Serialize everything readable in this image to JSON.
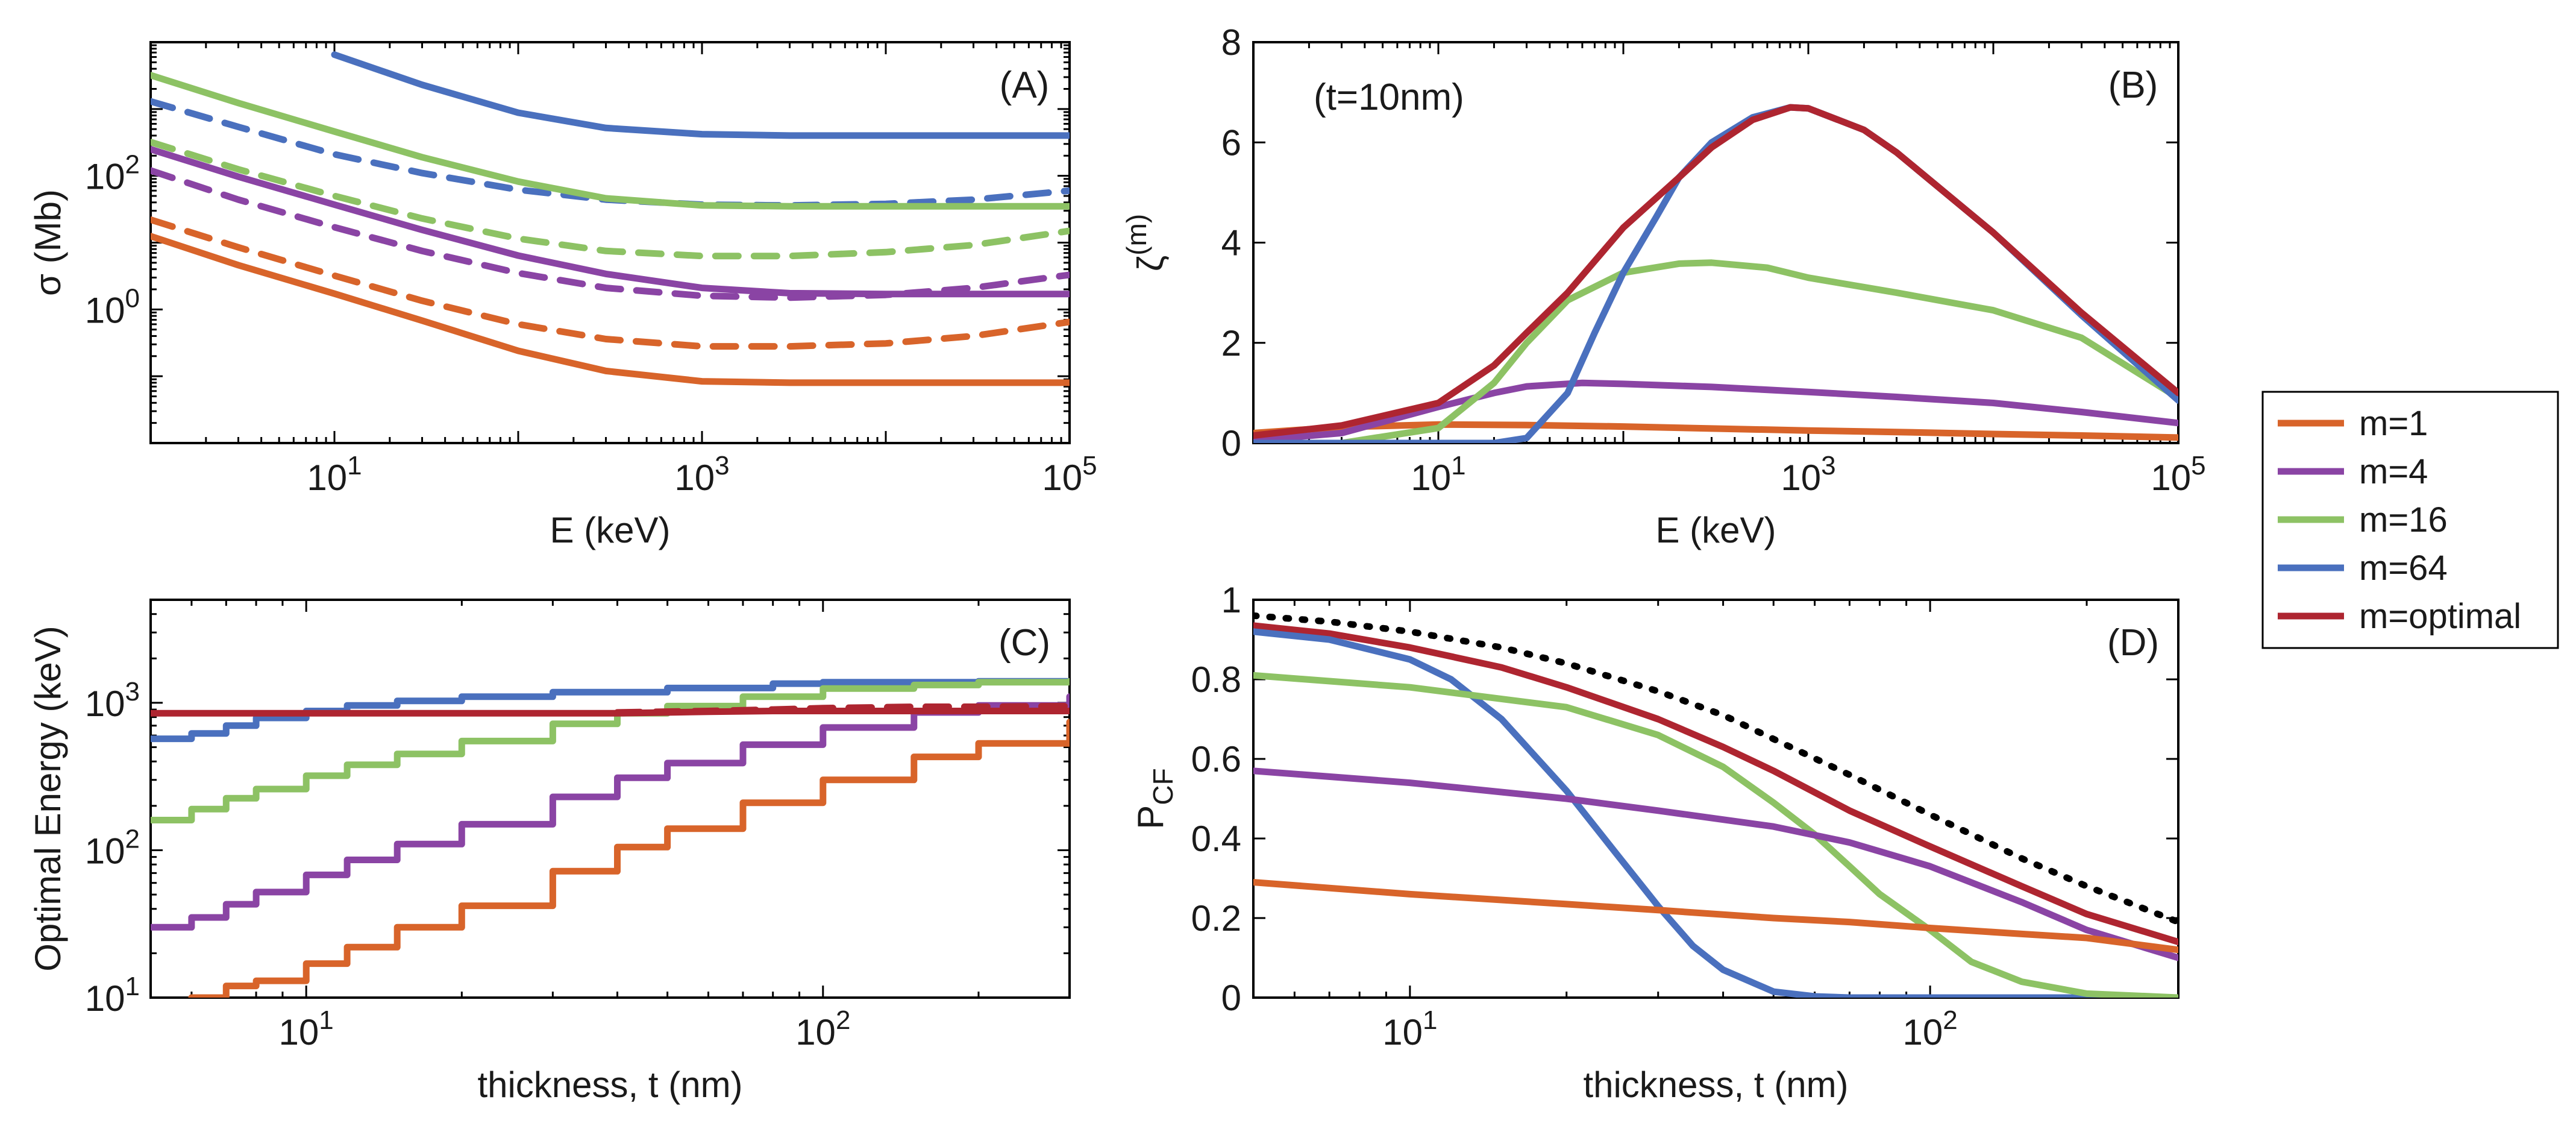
{
  "colors": {
    "m1": "#D8642A",
    "m4": "#8A44A4",
    "m16": "#8DC264",
    "m64": "#4A70BE",
    "mopt": "#AE2530",
    "bound": "#000000"
  },
  "legend": {
    "items": [
      {
        "key": "m1",
        "label": "m=1"
      },
      {
        "key": "m4",
        "label": "m=4"
      },
      {
        "key": "m16",
        "label": "m=16"
      },
      {
        "key": "m64",
        "label": "m=64"
      },
      {
        "key": "mopt",
        "label": "m=optimal"
      }
    ]
  },
  "chart_data": [
    {
      "id": "A",
      "type": "line",
      "tag": "(A)",
      "xlabel": "E (keV)",
      "ylabel": "σ (Mb)",
      "xscale": "log",
      "yscale": "log",
      "xlim": [
        1,
        100000
      ],
      "ylim": [
        0.01,
        10000
      ],
      "xticks": [
        {
          "value": 10,
          "base": "10",
          "exp": "1"
        },
        {
          "value": 1000,
          "base": "10",
          "exp": "3"
        },
        {
          "value": 100000,
          "base": "10",
          "exp": "5"
        }
      ],
      "yticks": [
        {
          "value": 1,
          "base": "10",
          "exp": "0"
        },
        {
          "value": 100,
          "base": "10",
          "exp": "2"
        }
      ],
      "series": [
        {
          "name": "m=64",
          "color_key": "m64",
          "dash": false,
          "x": [
            10,
            30,
            100,
            300,
            1000,
            3000,
            10000,
            100000
          ],
          "y": [
            6500,
            2300,
            880,
            520,
            420,
            400,
            400,
            400
          ]
        },
        {
          "name": "m=64 dashed",
          "color_key": "m64",
          "dash": true,
          "x": [
            1,
            3,
            10,
            30,
            100,
            300,
            1000,
            3000,
            10000,
            30000,
            100000
          ],
          "y": [
            1300,
            540,
            210,
            110,
            62,
            44,
            37,
            36,
            38,
            44,
            60
          ]
        },
        {
          "name": "m=16",
          "color_key": "m16",
          "dash": false,
          "x": [
            1,
            3,
            10,
            30,
            100,
            300,
            1000,
            3000,
            10000,
            100000
          ],
          "y": [
            3200,
            1230,
            460,
            190,
            82,
            46,
            36,
            35,
            35,
            35
          ]
        },
        {
          "name": "m=16 dashed",
          "color_key": "m16",
          "dash": true,
          "x": [
            1,
            3,
            10,
            30,
            100,
            300,
            1000,
            3000,
            10000,
            30000,
            100000
          ],
          "y": [
            320,
            125,
            50,
            23,
            11.5,
            7.5,
            6.3,
            6.3,
            7.2,
            9.2,
            15
          ]
        },
        {
          "name": "m=4",
          "color_key": "m4",
          "dash": false,
          "x": [
            1,
            3,
            10,
            30,
            100,
            300,
            1000,
            3000,
            10000,
            100000
          ],
          "y": [
            250,
            97,
            37,
            15.5,
            6.4,
            3.4,
            2.1,
            1.75,
            1.7,
            1.7
          ]
        },
        {
          "name": "m=4 dashed",
          "color_key": "m4",
          "dash": true,
          "x": [
            1,
            3,
            10,
            30,
            100,
            300,
            1000,
            3000,
            10000,
            30000,
            100000
          ],
          "y": [
            120,
            44,
            17,
            7.5,
            3.5,
            2.1,
            1.6,
            1.5,
            1.65,
            2.1,
            3.3
          ]
        },
        {
          "name": "m=1 dashed",
          "color_key": "m1",
          "dash": true,
          "x": [
            1,
            3,
            10,
            30,
            100,
            300,
            1000,
            3000,
            10000,
            30000,
            100000
          ],
          "y": [
            22,
            8.5,
            3.2,
            1.35,
            0.6,
            0.36,
            0.28,
            0.28,
            0.31,
            0.4,
            0.65
          ]
        },
        {
          "name": "m=1",
          "color_key": "m1",
          "dash": false,
          "x": [
            1,
            3,
            10,
            30,
            100,
            300,
            1000,
            3000,
            10000,
            100000
          ],
          "y": [
            12.5,
            4.6,
            1.72,
            0.68,
            0.24,
            0.12,
            0.084,
            0.08,
            0.08,
            0.08
          ]
        }
      ]
    },
    {
      "id": "B",
      "type": "line",
      "tag": "(B)",
      "annotation": "(t=10nm)",
      "xlabel": "E (keV)",
      "ylabel": "ζ",
      "ylabel_sup": "(m)",
      "xscale": "log",
      "yscale": "linear",
      "xlim": [
        1,
        100000
      ],
      "ylim": [
        0,
        8
      ],
      "xticks": [
        {
          "value": 10,
          "base": "10",
          "exp": "1"
        },
        {
          "value": 1000,
          "base": "10",
          "exp": "3"
        },
        {
          "value": 100000,
          "base": "10",
          "exp": "5"
        }
      ],
      "yticks": [
        {
          "value": 0,
          "label": "0"
        },
        {
          "value": 2,
          "label": "2"
        },
        {
          "value": 4,
          "label": "4"
        },
        {
          "value": 6,
          "label": "6"
        },
        {
          "value": 8,
          "label": "8"
        }
      ],
      "series": [
        {
          "name": "m=1",
          "color_key": "m1",
          "x": [
            1,
            3,
            10,
            30,
            100,
            300,
            1000,
            3000,
            10000,
            30000,
            100000
          ],
          "y": [
            0.2,
            0.32,
            0.37,
            0.36,
            0.33,
            0.29,
            0.25,
            0.22,
            0.18,
            0.15,
            0.11
          ]
        },
        {
          "name": "m=4",
          "color_key": "m4",
          "x": [
            1,
            3,
            10,
            20,
            30,
            60,
            100,
            300,
            1000,
            3000,
            10000,
            30000,
            100000
          ],
          "y": [
            0.05,
            0.2,
            0.72,
            1.0,
            1.13,
            1.2,
            1.18,
            1.12,
            1.02,
            0.92,
            0.8,
            0.62,
            0.4
          ]
        },
        {
          "name": "m=16",
          "color_key": "m16",
          "x": [
            1,
            3,
            10,
            20,
            30,
            50,
            100,
            200,
            300,
            600,
            1000,
            3000,
            10000,
            30000,
            100000
          ],
          "y": [
            0.0,
            0.0,
            0.3,
            1.2,
            2.0,
            2.85,
            3.4,
            3.58,
            3.6,
            3.5,
            3.3,
            3.0,
            2.65,
            2.1,
            0.9
          ]
        },
        {
          "name": "m=64",
          "color_key": "m64",
          "x": [
            1,
            20,
            30,
            50,
            70,
            100,
            150,
            200,
            300,
            500,
            800,
            1000,
            2000,
            3000,
            10000,
            30000,
            100000
          ],
          "y": [
            0.0,
            0.0,
            0.1,
            1.0,
            2.2,
            3.4,
            4.5,
            5.3,
            6.0,
            6.5,
            6.7,
            6.68,
            6.25,
            5.8,
            4.2,
            2.55,
            0.85
          ]
        },
        {
          "name": "m=optimal",
          "color_key": "mopt",
          "x": [
            1,
            3,
            10,
            20,
            30,
            50,
            100,
            200,
            300,
            500,
            800,
            1000,
            2000,
            3000,
            10000,
            30000,
            100000
          ],
          "y": [
            0.15,
            0.35,
            0.8,
            1.55,
            2.2,
            3.0,
            4.3,
            5.3,
            5.9,
            6.45,
            6.7,
            6.68,
            6.25,
            5.8,
            4.2,
            2.6,
            1.0
          ]
        }
      ]
    },
    {
      "id": "C",
      "type": "line",
      "tag": "(C)",
      "xlabel": "thickness, t (nm)",
      "ylabel": "Optimal Energy (keV)",
      "xscale": "log",
      "yscale": "log",
      "xlim": [
        5,
        300
      ],
      "ylim": [
        10,
        5000
      ],
      "xticks": [
        {
          "value": 10,
          "base": "10",
          "exp": "1"
        },
        {
          "value": 100,
          "base": "10",
          "exp": "2"
        }
      ],
      "yticks": [
        {
          "value": 10,
          "base": "10",
          "exp": "1"
        },
        {
          "value": 100,
          "base": "10",
          "exp": "2"
        },
        {
          "value": 1000,
          "base": "10",
          "exp": "3"
        }
      ],
      "series": [
        {
          "name": "m=64",
          "color_key": "m64",
          "step": true,
          "x": [
            5,
            6,
            7,
            8,
            10,
            12,
            15,
            20,
            30,
            50,
            80,
            100,
            200,
            300
          ],
          "y": [
            570,
            620,
            700,
            790,
            880,
            960,
            1030,
            1100,
            1180,
            1260,
            1350,
            1380,
            1400,
            1400
          ]
        },
        {
          "name": "m=16",
          "color_key": "m16",
          "step": true,
          "x": [
            5,
            6,
            7,
            8,
            10,
            12,
            15,
            20,
            30,
            40,
            50,
            70,
            100,
            150,
            200,
            300
          ],
          "y": [
            160,
            190,
            225,
            260,
            320,
            380,
            450,
            550,
            720,
            850,
            950,
            1100,
            1250,
            1320,
            1380,
            1400
          ]
        },
        {
          "name": "m=4",
          "color_key": "m4",
          "step": true,
          "x": [
            5,
            6,
            7,
            8,
            10,
            12,
            15,
            20,
            30,
            40,
            50,
            70,
            100,
            150,
            200,
            300
          ],
          "y": [
            30,
            35,
            43,
            52,
            68,
            86,
            110,
            150,
            230,
            310,
            390,
            520,
            680,
            860,
            960,
            1100
          ]
        },
        {
          "name": "m=1",
          "color_key": "m1",
          "step": true,
          "x": [
            6,
            7,
            8,
            10,
            12,
            15,
            20,
            30,
            40,
            50,
            70,
            100,
            150,
            200,
            300
          ],
          "y": [
            10,
            12,
            13,
            17,
            22,
            30,
            42,
            72,
            105,
            140,
            210,
            300,
            430,
            530,
            740
          ]
        },
        {
          "name": "m=optimal",
          "color_key": "mopt",
          "x": [
            5,
            10,
            20,
            40,
            50,
            60,
            80,
            100,
            300
          ],
          "y": [
            850,
            850,
            850,
            850,
            860,
            870,
            880,
            880,
            880
          ]
        },
        {
          "name": "m=optimal dashed",
          "color_key": "mopt",
          "dash": true,
          "x": [
            40,
            60,
            80,
            100,
            150,
            200,
            300
          ],
          "y": [
            860,
            880,
            900,
            920,
            940,
            940,
            950
          ]
        }
      ]
    },
    {
      "id": "D",
      "type": "line",
      "tag": "(D)",
      "xlabel": "thickness, t (nm)",
      "ylabel": "P",
      "ylabel_sub": "CF",
      "xscale": "log",
      "yscale": "linear",
      "xlim": [
        5,
        300
      ],
      "ylim": [
        0,
        1
      ],
      "xticks": [
        {
          "value": 10,
          "base": "10",
          "exp": "1"
        },
        {
          "value": 100,
          "base": "10",
          "exp": "2"
        }
      ],
      "yticks": [
        {
          "value": 0,
          "label": "0"
        },
        {
          "value": 0.2,
          "label": "0.2"
        },
        {
          "value": 0.4,
          "label": "0.4"
        },
        {
          "value": 0.6,
          "label": "0.6"
        },
        {
          "value": 0.8,
          "label": "0.8"
        },
        {
          "value": 1,
          "label": "1"
        }
      ],
      "series": [
        {
          "name": "upper bound",
          "color_key": "bound",
          "dotted": true,
          "x": [
            5,
            7,
            10,
            15,
            20,
            30,
            40,
            50,
            70,
            100,
            150,
            200,
            300
          ],
          "y": [
            0.96,
            0.945,
            0.92,
            0.88,
            0.84,
            0.77,
            0.71,
            0.65,
            0.56,
            0.46,
            0.35,
            0.28,
            0.19
          ]
        },
        {
          "name": "m=optimal",
          "color_key": "mopt",
          "x": [
            5,
            7,
            10,
            15,
            20,
            30,
            40,
            50,
            70,
            100,
            150,
            200,
            300
          ],
          "y": [
            0.935,
            0.915,
            0.88,
            0.83,
            0.78,
            0.7,
            0.63,
            0.57,
            0.47,
            0.38,
            0.28,
            0.21,
            0.14
          ]
        },
        {
          "name": "m=64",
          "color_key": "m64",
          "x": [
            5,
            7,
            10,
            12,
            15,
            20,
            25,
            30,
            35,
            40,
            50,
            60,
            70,
            100,
            300
          ],
          "y": [
            0.92,
            0.9,
            0.85,
            0.8,
            0.7,
            0.52,
            0.36,
            0.23,
            0.13,
            0.07,
            0.015,
            0.003,
            0.0,
            0.0,
            0.0
          ]
        },
        {
          "name": "m=16",
          "color_key": "m16",
          "x": [
            5,
            10,
            20,
            30,
            40,
            50,
            60,
            70,
            80,
            100,
            120,
            150,
            200,
            300
          ],
          "y": [
            0.81,
            0.78,
            0.73,
            0.66,
            0.58,
            0.49,
            0.41,
            0.33,
            0.26,
            0.17,
            0.09,
            0.04,
            0.01,
            0.0
          ]
        },
        {
          "name": "m=4",
          "color_key": "m4",
          "x": [
            5,
            10,
            20,
            30,
            50,
            70,
            100,
            150,
            200,
            300
          ],
          "y": [
            0.57,
            0.54,
            0.5,
            0.47,
            0.43,
            0.39,
            0.33,
            0.24,
            0.17,
            0.1
          ]
        },
        {
          "name": "m=1",
          "color_key": "m1",
          "x": [
            5,
            10,
            20,
            30,
            50,
            70,
            100,
            150,
            200,
            300
          ],
          "y": [
            0.29,
            0.26,
            0.235,
            0.22,
            0.2,
            0.19,
            0.175,
            0.16,
            0.15,
            0.12
          ]
        }
      ]
    }
  ]
}
